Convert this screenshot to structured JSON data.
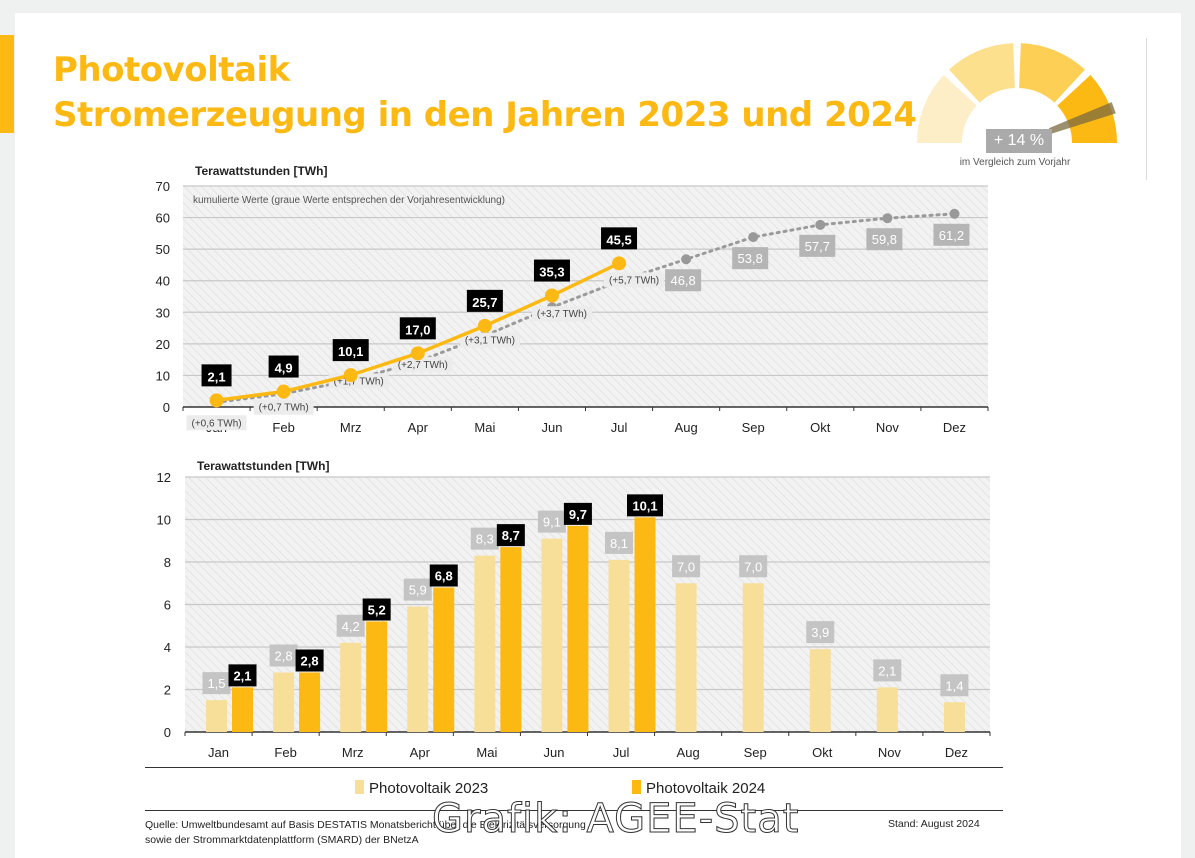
{
  "header": {
    "title_line1": "Photovoltaik",
    "title_line2": "Stromerzeugung in den Jahren 2023 und 2024"
  },
  "gauge": {
    "value_label": "+ 14 %",
    "value": 14,
    "caption": "im Vergleich zum Vorjahr",
    "segment_colors": [
      "#fdeec7",
      "#fde08e",
      "#fdcf55",
      "#fdb913"
    ],
    "needle_color": "#8a6d00"
  },
  "colors": {
    "brand": "#fdb913",
    "prior_year": "#f7df9a",
    "grey_label": "#b5b5b5",
    "black_label": "#000000"
  },
  "chart_data": [
    {
      "type": "line",
      "title": "",
      "ylabel": "Terawattstunden [TWh]",
      "note": "kumulierte Werte (graue Werte entsprechen der Vorjahresentwicklung)",
      "categories": [
        "Jan",
        "Feb",
        "Mrz",
        "Apr",
        "Mai",
        "Jun",
        "Jul",
        "Aug",
        "Sep",
        "Okt",
        "Nov",
        "Dez"
      ],
      "ylim": [
        0,
        70
      ],
      "yticks": [
        0,
        10,
        20,
        30,
        40,
        50,
        60,
        70
      ],
      "grid": true,
      "series": [
        {
          "name": "Photovoltaik 2024 (kumuliert)",
          "color": "#fdb913",
          "values": [
            2.1,
            4.9,
            10.1,
            17.0,
            25.7,
            35.3,
            45.5
          ],
          "labels": [
            "2,1",
            "4,9",
            "10,1",
            "17,0",
            "25,7",
            "35,3",
            "45,5"
          ]
        },
        {
          "name": "Photovoltaik 2023 (kumuliert)",
          "color": "#999999",
          "style": "dotted",
          "values": [
            1.5,
            4.2,
            8.4,
            14.3,
            22.6,
            31.6,
            39.8,
            46.8,
            53.8,
            57.7,
            59.8,
            61.2
          ],
          "labels": [
            null,
            null,
            null,
            null,
            null,
            null,
            null,
            "46,8",
            "53,8",
            "57,7",
            "59,8",
            "61,2"
          ]
        }
      ],
      "difference_labels": [
        "(+0,6 TWh)",
        "(+0,7 TWh)",
        "(+1,7 TWh)",
        "(+2,7 TWh)",
        "(+3,1 TWh)",
        "(+3,7 TWh)",
        "(+5,7 TWh)"
      ]
    },
    {
      "type": "bar",
      "title": "",
      "ylabel": "Terawattstunden [TWh]",
      "categories": [
        "Jan",
        "Feb",
        "Mrz",
        "Apr",
        "Mai",
        "Jun",
        "Jul",
        "Aug",
        "Sep",
        "Okt",
        "Nov",
        "Dez"
      ],
      "ylim": [
        0,
        12
      ],
      "yticks": [
        0,
        2,
        4,
        6,
        8,
        10,
        12
      ],
      "grid": true,
      "legend_position": "bottom",
      "series": [
        {
          "name": "Photovoltaik 2023",
          "color": "#f7df9a",
          "values": [
            1.5,
            2.8,
            4.2,
            5.9,
            8.3,
            9.1,
            8.1,
            7.0,
            7.0,
            3.9,
            2.1,
            1.4
          ],
          "labels": [
            "1,5",
            "2,8",
            "4,2",
            "5,9",
            "8,3",
            "9,1",
            "8,1",
            "7,0",
            "7,0",
            "3,9",
            "2,1",
            "1,4"
          ]
        },
        {
          "name": "Photovoltaik 2024",
          "color": "#fdb913",
          "values": [
            2.1,
            2.8,
            5.2,
            6.8,
            8.7,
            9.7,
            10.1
          ],
          "labels": [
            "2,1",
            "2,8",
            "5,2",
            "6,8",
            "8,7",
            "9,7",
            "10,1"
          ]
        }
      ]
    }
  ],
  "legend": {
    "item_2023": "Photovoltaik 2023",
    "item_2024": "Photovoltaik 2024"
  },
  "footer": {
    "source_line1": "Quelle: Umweltbundesamt auf Basis DESTATIS Monatsbericht über die Elektrizitätsversorgung",
    "source_line2": "sowie der Strommarktdatenplattform (SMARD) der BNetzA",
    "stand": "Stand: August 2024",
    "watermark": "Grafik: AGEE-Stat"
  }
}
